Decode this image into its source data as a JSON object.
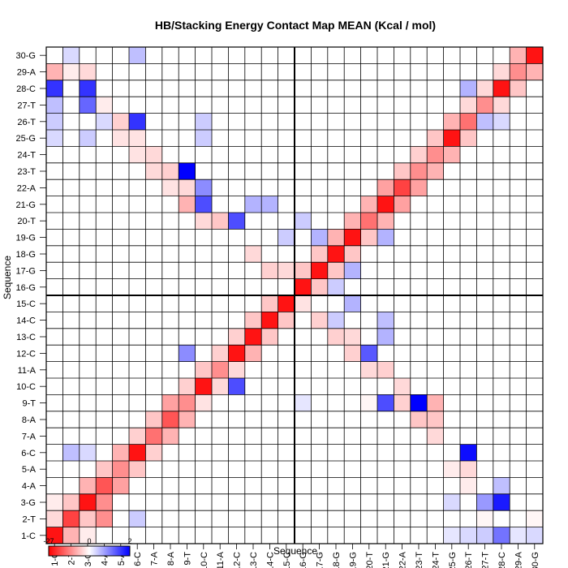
{
  "chart_data": {
    "type": "heatmap",
    "title": "HB/Stacking Energy Contact Map MEAN (Kcal / mol)",
    "xlabel": "Sequence",
    "ylabel": "Sequence",
    "x_categories": [
      "1-C",
      "2-T",
      "3-G",
      "4-A",
      "5-A",
      "6-C",
      "7-A",
      "8-A",
      "9-T",
      "10-C",
      "11-A",
      "12-C",
      "13-C",
      "14-C",
      "15-C",
      "16-G",
      "17-G",
      "18-G",
      "19-G",
      "20-T",
      "21-G",
      "22-A",
      "23-T",
      "24-T",
      "25-G",
      "26-T",
      "27-T",
      "28-C",
      "29-A",
      "30-G"
    ],
    "y_categories": [
      "1-C",
      "2-T",
      "3-G",
      "4-A",
      "5-A",
      "6-C",
      "7-A",
      "8-A",
      "9-T",
      "10-C",
      "11-A",
      "12-C",
      "13-C",
      "14-C",
      "15-C",
      "16-G",
      "17-G",
      "18-G",
      "19-G",
      "20-T",
      "21-G",
      "22-A",
      "23-T",
      "24-T",
      "25-G",
      "26-T",
      "27-T",
      "28-C",
      "29-A",
      "30-G"
    ],
    "colorscale": {
      "min": -27,
      "mid": 0,
      "max": 2,
      "low_color": "#ff0000",
      "mid_color": "#ffffff",
      "high_color": "#0000ff",
      "tick_labels": [
        "-27",
        "0",
        "2"
      ]
    },
    "grid": true,
    "divider_after_index": 15,
    "cells": [
      {
        "i": 1,
        "j": 1,
        "v": -25
      },
      {
        "i": 2,
        "j": 2,
        "v": -20
      },
      {
        "i": 3,
        "j": 3,
        "v": -25
      },
      {
        "i": 4,
        "j": 4,
        "v": -18
      },
      {
        "i": 5,
        "j": 5,
        "v": -12
      },
      {
        "i": 6,
        "j": 6,
        "v": -25
      },
      {
        "i": 7,
        "j": 7,
        "v": -15
      },
      {
        "i": 8,
        "j": 8,
        "v": -18
      },
      {
        "i": 9,
        "j": 9,
        "v": -12
      },
      {
        "i": 10,
        "j": 10,
        "v": -25
      },
      {
        "i": 11,
        "j": 11,
        "v": -12
      },
      {
        "i": 12,
        "j": 12,
        "v": -25
      },
      {
        "i": 13,
        "j": 13,
        "v": -25
      },
      {
        "i": 14,
        "j": 14,
        "v": -25
      },
      {
        "i": 15,
        "j": 15,
        "v": -25
      },
      {
        "i": 16,
        "j": 16,
        "v": -25
      },
      {
        "i": 17,
        "j": 17,
        "v": -25
      },
      {
        "i": 18,
        "j": 18,
        "v": -25
      },
      {
        "i": 19,
        "j": 19,
        "v": -25
      },
      {
        "i": 20,
        "j": 20,
        "v": -15
      },
      {
        "i": 21,
        "j": 21,
        "v": -25
      },
      {
        "i": 22,
        "j": 22,
        "v": -20
      },
      {
        "i": 23,
        "j": 23,
        "v": -12
      },
      {
        "i": 24,
        "j": 24,
        "v": -12
      },
      {
        "i": 25,
        "j": 25,
        "v": -25
      },
      {
        "i": 26,
        "j": 26,
        "v": -15
      },
      {
        "i": 27,
        "j": 27,
        "v": -12
      },
      {
        "i": 28,
        "j": 28,
        "v": -25
      },
      {
        "i": 29,
        "j": 29,
        "v": -12
      },
      {
        "i": 30,
        "j": 30,
        "v": -25
      },
      {
        "i": 1,
        "j": 2,
        "v": -4
      },
      {
        "i": 2,
        "j": 1,
        "v": -8
      },
      {
        "i": 1,
        "j": 3,
        "v": -2
      },
      {
        "i": 3,
        "j": 1,
        "v": -2
      },
      {
        "i": 2,
        "j": 3,
        "v": -6
      },
      {
        "i": 3,
        "j": 2,
        "v": -6
      },
      {
        "i": 3,
        "j": 4,
        "v": -8
      },
      {
        "i": 4,
        "j": 3,
        "v": -12
      },
      {
        "i": 4,
        "j": 2,
        "v": -12
      },
      {
        "i": 4,
        "j": 5,
        "v": -6
      },
      {
        "i": 5,
        "j": 4,
        "v": -10
      },
      {
        "i": 5,
        "j": 6,
        "v": -8
      },
      {
        "i": 6,
        "j": 5,
        "v": -6
      },
      {
        "i": 6,
        "j": 7,
        "v": -5
      },
      {
        "i": 7,
        "j": 6,
        "v": -5
      },
      {
        "i": 7,
        "j": 8,
        "v": -6
      },
      {
        "i": 8,
        "j": 7,
        "v": -8
      },
      {
        "i": 8,
        "j": 9,
        "v": -10
      },
      {
        "i": 9,
        "j": 8,
        "v": -8
      },
      {
        "i": 9,
        "j": 10,
        "v": -5
      },
      {
        "i": 10,
        "j": 9,
        "v": -3
      },
      {
        "i": 10,
        "j": 11,
        "v": -6
      },
      {
        "i": 11,
        "j": 10,
        "v": -4
      },
      {
        "i": 11,
        "j": 12,
        "v": -5
      },
      {
        "i": 12,
        "j": 11,
        "v": -4
      },
      {
        "i": 12,
        "j": 13,
        "v": -5
      },
      {
        "i": 13,
        "j": 12,
        "v": -8
      },
      {
        "i": 13,
        "j": 14,
        "v": -6
      },
      {
        "i": 14,
        "j": 13,
        "v": -6
      },
      {
        "i": 14,
        "j": 15,
        "v": -6
      },
      {
        "i": 15,
        "j": 14,
        "v": -6
      },
      {
        "i": 16,
        "j": 17,
        "v": -6
      },
      {
        "i": 17,
        "j": 16,
        "v": -6
      },
      {
        "i": 17,
        "j": 18,
        "v": -6
      },
      {
        "i": 18,
        "j": 17,
        "v": -6
      },
      {
        "i": 18,
        "j": 19,
        "v": -8
      },
      {
        "i": 19,
        "j": 18,
        "v": -6
      },
      {
        "i": 19,
        "j": 20,
        "v": -8
      },
      {
        "i": 20,
        "j": 19,
        "v": -6
      },
      {
        "i": 20,
        "j": 21,
        "v": -8
      },
      {
        "i": 21,
        "j": 20,
        "v": -8
      },
      {
        "i": 21,
        "j": 22,
        "v": -10
      },
      {
        "i": 22,
        "j": 21,
        "v": -10
      },
      {
        "i": 22,
        "j": 23,
        "v": -6
      },
      {
        "i": 23,
        "j": 22,
        "v": -10
      },
      {
        "i": 23,
        "j": 24,
        "v": -5
      },
      {
        "i": 24,
        "j": 23,
        "v": -8
      },
      {
        "i": 24,
        "j": 25,
        "v": -6
      },
      {
        "i": 25,
        "j": 24,
        "v": -8
      },
      {
        "i": 25,
        "j": 26,
        "v": -8
      },
      {
        "i": 26,
        "j": 25,
        "v": -6
      },
      {
        "i": 26,
        "j": 27,
        "v": -4
      },
      {
        "i": 27,
        "j": 26,
        "v": -6
      },
      {
        "i": 27,
        "j": 28,
        "v": -4
      },
      {
        "i": 28,
        "j": 27,
        "v": -4
      },
      {
        "i": 28,
        "j": 29,
        "v": -4
      },
      {
        "i": 29,
        "j": 28,
        "v": -6
      },
      {
        "i": 29,
        "j": 30,
        "v": -8
      },
      {
        "i": 30,
        "j": 29,
        "v": -8
      },
      {
        "i": 2,
        "j": 30,
        "v": 0.3
      },
      {
        "i": 1,
        "j": 29,
        "v": -8
      },
      {
        "i": 28,
        "j": 3,
        "v": 1.8
      },
      {
        "i": 26,
        "j": 6,
        "v": 1.9
      },
      {
        "i": 23,
        "j": 9,
        "v": 2
      },
      {
        "i": 21,
        "j": 9,
        "v": 1.4
      },
      {
        "i": 20,
        "j": 12,
        "v": 1.3
      },
      {
        "i": 18,
        "j": 14,
        "v": 0.4
      },
      {
        "i": 12,
        "j": 10,
        "v": 1.4
      },
      {
        "i": 10,
        "j": 21,
        "v": 1.4
      },
      {
        "i": 9,
        "j": 23,
        "v": 2
      },
      {
        "i": 6,
        "j": 26,
        "v": 1.6
      },
      {
        "i": 3,
        "j": 28,
        "v": 1.6
      },
      {
        "i": 1,
        "j": 28,
        "v": 1.6
      },
      {
        "i": 12,
        "j": 20,
        "v": 1.4
      },
      {
        "i": 9,
        "j": 12,
        "v": 0.9
      },
      {
        "i": 10,
        "j": 22,
        "v": 0.9
      },
      {
        "i": 3,
        "j": 27,
        "v": 1.2
      },
      {
        "i": 30,
        "j": 1,
        "v": 0.3
      },
      {
        "i": 29,
        "j": 1,
        "v": 0.2
      },
      {
        "i": 27,
        "j": 1,
        "v": 0.4
      },
      {
        "i": 26,
        "j": 1,
        "v": 0.3
      },
      {
        "i": 25,
        "j": 1,
        "v": 0.2
      },
      {
        "i": 28,
        "j": 1,
        "v": 1.1
      },
      {
        "i": 27,
        "j": 3,
        "v": 0.8
      },
      {
        "i": 26,
        "j": 5,
        "v": 0.3
      },
      {
        "i": 28,
        "j": 4,
        "v": 0.5
      },
      {
        "i": 21,
        "j": 13,
        "v": 0.6
      },
      {
        "i": 21,
        "j": 14,
        "v": 0.5
      },
      {
        "i": 21,
        "j": 19,
        "v": 0.6
      },
      {
        "i": 19,
        "j": 15,
        "v": 0.6
      },
      {
        "i": 19,
        "j": 17,
        "v": 0.6
      },
      {
        "i": 18,
        "j": 16,
        "v": 0.4
      },
      {
        "i": 17,
        "j": 19,
        "v": 0.6
      },
      {
        "i": 16,
        "j": 20,
        "v": 0.4
      },
      {
        "i": 15,
        "j": 19,
        "v": 0.4
      },
      {
        "i": 14,
        "j": 21,
        "v": 0.6
      },
      {
        "i": 13,
        "j": 21,
        "v": 0.6
      },
      {
        "i": 11,
        "j": 20,
        "v": 0.4
      },
      {
        "i": 10,
        "j": 25,
        "v": 0.4
      },
      {
        "i": 10,
        "j": 26,
        "v": 0.4
      },
      {
        "i": 6,
        "j": 2,
        "v": 0.4
      },
      {
        "i": 6,
        "j": 30,
        "v": 0.5
      },
      {
        "i": 5,
        "j": 25,
        "v": 0.3
      },
      {
        "i": 4,
        "j": 26,
        "v": 0.3
      },
      {
        "i": 3,
        "j": 6,
        "v": 0.3
      },
      {
        "i": 3,
        "j": 25,
        "v": 0.4
      },
      {
        "i": 2,
        "j": 6,
        "v": 0.5
      },
      {
        "i": 1,
        "j": 27,
        "v": 0.5
      },
      {
        "i": 1,
        "j": 26,
        "v": 0.4
      },
      {
        "i": 1,
        "j": 25,
        "v": 0.3
      },
      {
        "i": 27,
        "j": 26,
        "v": 0.5
      },
      {
        "i": 28,
        "j": 26,
        "v": 0.3
      },
      {
        "i": 26,
        "j": 28,
        "v": 0.6
      },
      {
        "i": 25,
        "j": 3,
        "v": 0.3
      },
      {
        "i": 16,
        "j": 9,
        "v": 0.2
      },
      {
        "i": 30,
        "j": 29,
        "v": -8
      },
      {
        "i": 30,
        "j": 2,
        "v": -1
      },
      {
        "i": 27,
        "j": 2,
        "v": -1
      },
      {
        "i": 26,
        "j": 4,
        "v": -2
      },
      {
        "i": 26,
        "j": 5,
        "v": -4
      },
      {
        "i": 25,
        "j": 5,
        "v": -2
      },
      {
        "i": 24,
        "j": 7,
        "v": -4
      },
      {
        "i": 24,
        "j": 8,
        "v": -6
      },
      {
        "i": 23,
        "j": 8,
        "v": -6
      },
      {
        "i": 22,
        "j": 10,
        "v": -4
      },
      {
        "i": 21,
        "j": 11,
        "v": -5
      },
      {
        "i": 20,
        "j": 11,
        "v": -4
      },
      {
        "i": 19,
        "j": 13,
        "v": -4
      },
      {
        "i": 18,
        "j": 13,
        "v": -5
      },
      {
        "i": 17,
        "j": 14,
        "v": -5
      },
      {
        "i": 16,
        "j": 15,
        "v": -3
      },
      {
        "i": 15,
        "j": 17,
        "v": -4
      },
      {
        "i": 14,
        "j": 17,
        "v": -5
      },
      {
        "i": 13,
        "j": 18,
        "v": -4
      },
      {
        "i": 11,
        "j": 20,
        "v": -6
      },
      {
        "i": 10,
        "j": 20,
        "v": -4
      },
      {
        "i": 9,
        "j": 22,
        "v": -4
      },
      {
        "i": 8,
        "j": 22,
        "v": -3
      },
      {
        "i": 7,
        "j": 23,
        "v": -4
      },
      {
        "i": 7,
        "j": 24,
        "v": -4
      },
      {
        "i": 6,
        "j": 24,
        "v": -3
      },
      {
        "i": 5,
        "j": 25,
        "v": -3
      },
      {
        "i": 5,
        "j": 26,
        "v": -5
      },
      {
        "i": 4,
        "j": 27,
        "v": -2
      },
      {
        "i": 3,
        "j": 29,
        "v": -4
      },
      {
        "i": 2,
        "j": 29,
        "v": -2
      },
      {
        "i": 6,
        "j": 25,
        "v": -3
      },
      {
        "i": 8,
        "j": 23,
        "v": -5
      },
      {
        "i": 9,
        "j": 21,
        "v": -8
      },
      {
        "i": 24,
        "j": 9,
        "v": -8
      },
      {
        "i": 22,
        "j": 9,
        "v": -5
      },
      {
        "i": 19,
        "j": 12,
        "v": -5
      },
      {
        "i": 20,
        "j": 9,
        "v": -1
      }
    ]
  }
}
